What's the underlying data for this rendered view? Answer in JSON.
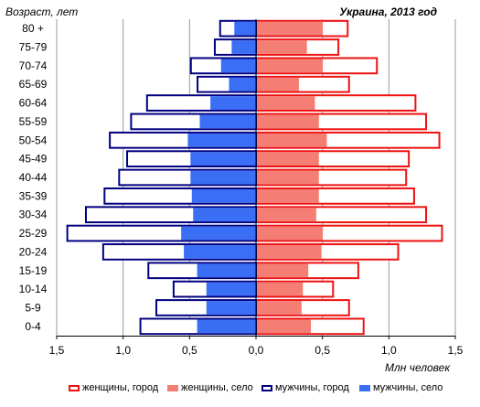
{
  "chart_data": {
    "type": "bar",
    "subtype": "population-pyramid",
    "title": "Украина, 2013 год",
    "ylabel": "Возраст, лет",
    "xlabel": "Млн человек",
    "categories": [
      "80 +",
      "75-79",
      "70-74",
      "65-69",
      "60-64",
      "55-59",
      "50-54",
      "45-49",
      "40-44",
      "35-39",
      "30-34",
      "25-29",
      "20-24",
      "15-19",
      "10-14",
      "5-9",
      "0-4"
    ],
    "x_tick_labels": [
      "1,5",
      "1,0",
      "0,5",
      "0,0",
      "0,5",
      "1,0",
      "1,5"
    ],
    "x_ticks": [
      -1.5,
      -1.0,
      -0.5,
      0.0,
      0.5,
      1.0,
      1.5
    ],
    "xlim": [
      -1.5,
      1.5
    ],
    "grid": true,
    "legend_position": "bottom",
    "series": [
      {
        "name": "женщины, город",
        "side": "right",
        "style": "outline",
        "color": "#ee1111",
        "values": [
          0.69,
          0.62,
          0.91,
          0.7,
          1.2,
          1.28,
          1.38,
          1.15,
          1.13,
          1.19,
          1.28,
          1.4,
          1.07,
          0.77,
          0.58,
          0.7,
          0.81
        ]
      },
      {
        "name": "женщины, село",
        "side": "right",
        "style": "filled",
        "color": "#f47e74",
        "values": [
          0.51,
          0.39,
          0.51,
          0.33,
          0.45,
          0.48,
          0.54,
          0.48,
          0.48,
          0.48,
          0.46,
          0.51,
          0.5,
          0.4,
          0.36,
          0.35,
          0.42
        ]
      },
      {
        "name": "мужчины, город",
        "side": "left",
        "style": "outline",
        "color": "#000080",
        "values": [
          0.27,
          0.31,
          0.49,
          0.44,
          0.82,
          0.94,
          1.1,
          0.97,
          1.03,
          1.14,
          1.28,
          1.42,
          1.15,
          0.81,
          0.62,
          0.75,
          0.87
        ]
      },
      {
        "name": "мужчины, село",
        "side": "left",
        "style": "filled",
        "color": "#3a6ef5",
        "values": [
          0.17,
          0.19,
          0.27,
          0.21,
          0.35,
          0.43,
          0.52,
          0.5,
          0.5,
          0.49,
          0.48,
          0.57,
          0.55,
          0.45,
          0.38,
          0.38,
          0.45
        ]
      }
    ]
  }
}
